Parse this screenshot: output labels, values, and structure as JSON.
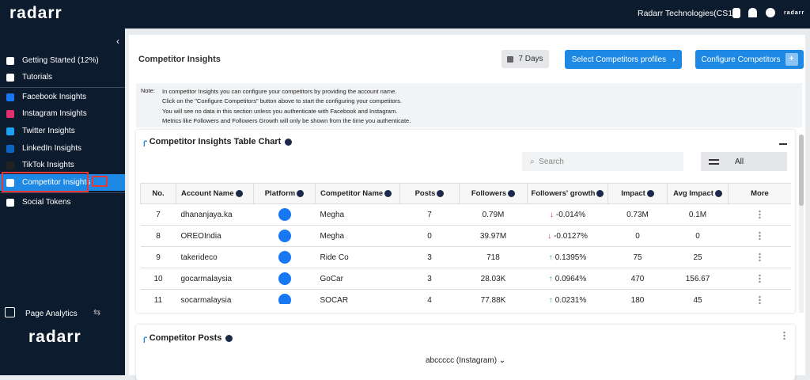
{
  "brand": {
    "logo": "radarr"
  },
  "topbar": {
    "company": "Radarr Technologies(CS1)",
    "small_logo": "radarr"
  },
  "sidebar": {
    "items": [
      "Getting Started (12%)",
      "Tutorials",
      "Facebook Insights",
      "Instagram Insights",
      "Twitter Insights",
      "LinkedIn Insights",
      "TikTok Insights",
      "Competitor Insights",
      "Social Tokens"
    ],
    "active": 7,
    "footer": "Page Analytics"
  },
  "header": {
    "title": "Competitor Insights",
    "date_button": "7 Days",
    "select_button": "Select Competitors profiles",
    "configure_button": "Configure Competitors"
  },
  "note": {
    "label": "Note:",
    "lines": [
      "In competitor Insights you can configure your competitors by providing the account name.",
      "Click on the \"Configure Competitors\" button above to start the configuring your competitors.",
      "You will see no data in this section unless you authenticate with Facebook and Instagram.",
      "Metrics like Followers and Followers Growth will only be shown from the time you authenticate."
    ]
  },
  "table_card": {
    "title": "Competitor Insights Table Chart",
    "search_placeholder": "Search",
    "filter": "All",
    "columns": [
      "No.",
      "Account Name",
      "Platform",
      "Competitor Name",
      "Posts",
      "Followers",
      "Followers' growth",
      "Impact",
      "Avg Impact",
      "More"
    ],
    "rows": [
      [
        7,
        "dhananjaya.ka",
        "Megha",
        7,
        "0.79M",
        "-0.014%",
        "0.73M",
        "0.1M"
      ],
      [
        8,
        "OREOIndia",
        "Megha",
        0,
        "39.97M",
        "-0.0127%",
        0,
        0
      ],
      [
        9,
        "takerideco",
        "Ride Co",
        3,
        "718",
        "0.1395%",
        75,
        25
      ],
      [
        10,
        "gocarmalaysia",
        "GoCar",
        3,
        "28.03K",
        "0.0964%",
        470,
        156.67
      ],
      [
        11,
        "socarmalaysia",
        "SOCAR",
        4,
        "77.88K",
        "0.0231%",
        180,
        45
      ]
    ]
  },
  "posts_card": {
    "title": "Competitor Posts",
    "account": "abccccc (Instagram)"
  }
}
